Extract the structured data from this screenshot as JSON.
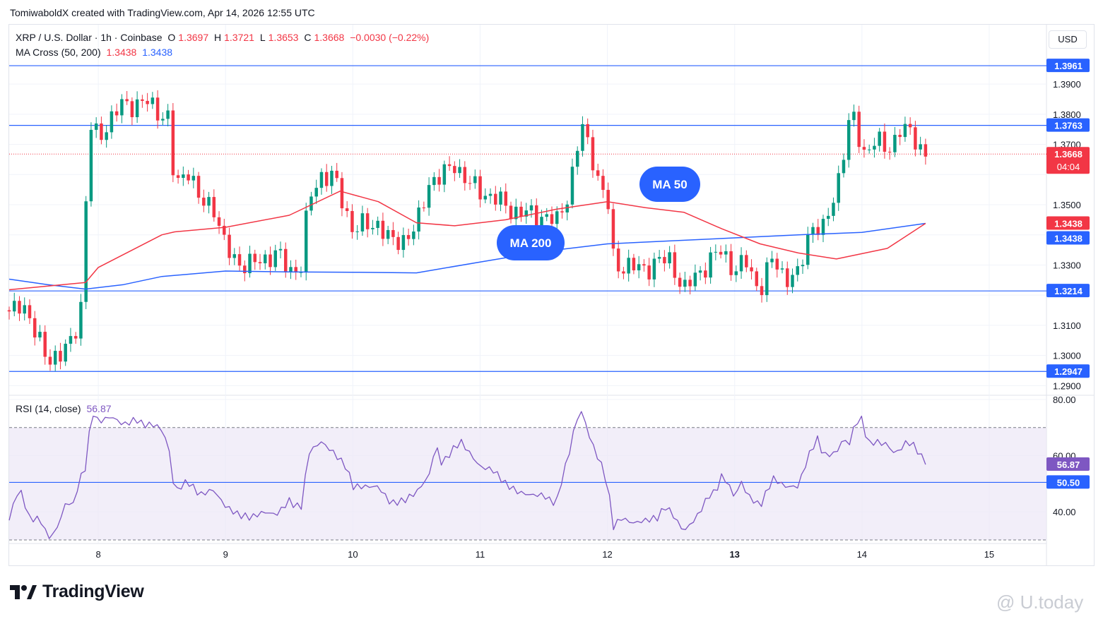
{
  "header": {
    "created_by": "TomiwaboldX created with TradingView.com, Apr 14, 2026 12:55 UTC"
  },
  "legend": {
    "symbol": "XRP / U.S. Dollar · 1h · Coinbase",
    "open_label": "O",
    "open": "1.3697",
    "high_label": "H",
    "high": "1.3721",
    "low_label": "L",
    "low": "1.3653",
    "close_label": "C",
    "close": "1.3668",
    "change": "−0.0030 (−0.22%)",
    "ma_name": "MA Cross (50, 200)",
    "ma50_value": "1.3438",
    "ma200_value": "1.3438",
    "rsi_name": "RSI (14, close)",
    "rsi_value": "56.87"
  },
  "currency_button": "USD",
  "annotations": {
    "ma50": "MA 50",
    "ma200": "MA 200"
  },
  "branding": {
    "logo_text": "TradingView",
    "watermark": "@ U.today"
  },
  "colors": {
    "up": "#089981",
    "down": "#f23645",
    "ma50": "#f23645",
    "ma200": "#2962ff",
    "hline": "#2962ff",
    "rsi": "#7e57c2",
    "rsi_band": "#ede7f6",
    "label_blue": "#2962ff",
    "label_red": "#f23645"
  },
  "chart_data": [
    {
      "type": "candlestick",
      "title": "XRP / U.S. Dollar · 1h · Coinbase",
      "x_ticks": [
        "8",
        "9",
        "10",
        "11",
        "12",
        "13",
        "14",
        "15"
      ],
      "x_tick_values": [
        8,
        9,
        10,
        11,
        12,
        13,
        14,
        15
      ],
      "x_range": [
        7.3,
        15.45
      ],
      "y_ticks": [
        1.29,
        1.3,
        1.31,
        1.33,
        1.35,
        1.37,
        1.38,
        1.39
      ],
      "y_tick_labels": [
        "1.2900",
        "1.3000",
        "1.3100",
        "1.3300",
        "1.3500",
        "1.3700",
        "1.3800",
        "1.3900"
      ],
      "y_range": [
        1.2875,
        1.4015
      ],
      "grid": true,
      "horizontal_levels": [
        {
          "value": 1.3961,
          "label": "1.3961"
        },
        {
          "value": 1.3763,
          "label": "1.3763"
        },
        {
          "value": 1.3214,
          "label": "1.3214"
        },
        {
          "value": 1.2947,
          "label": "1.2947"
        }
      ],
      "last_price": {
        "value": 1.3668,
        "label": "1.3668",
        "countdown": "04:04"
      },
      "ma_labels": [
        {
          "name": "MA 50",
          "value": 1.3438,
          "label": "1.3438"
        },
        {
          "name": "MA 200",
          "value": 1.3438,
          "label": "1.3438"
        }
      ],
      "close_path_keypoints": [
        [
          7.3,
          1.313
        ],
        [
          7.4,
          1.319
        ],
        [
          7.5,
          1.307
        ],
        [
          7.6,
          1.3
        ],
        [
          7.7,
          1.299
        ],
        [
          7.8,
          1.306
        ],
        [
          7.87,
          1.318
        ],
        [
          7.93,
          1.376
        ],
        [
          8.0,
          1.373
        ],
        [
          8.1,
          1.378
        ],
        [
          8.2,
          1.384
        ],
        [
          8.3,
          1.383
        ],
        [
          8.4,
          1.384
        ],
        [
          8.5,
          1.38
        ],
        [
          8.55,
          1.378
        ],
        [
          8.6,
          1.355
        ],
        [
          8.7,
          1.363
        ],
        [
          8.8,
          1.35
        ],
        [
          8.9,
          1.351
        ],
        [
          9.0,
          1.335
        ],
        [
          9.1,
          1.331
        ],
        [
          9.2,
          1.33
        ],
        [
          9.3,
          1.332
        ],
        [
          9.4,
          1.334
        ],
        [
          9.5,
          1.328
        ],
        [
          9.6,
          1.33
        ],
        [
          9.65,
          1.351
        ],
        [
          9.75,
          1.36
        ],
        [
          9.85,
          1.359
        ],
        [
          9.9,
          1.353
        ],
        [
          10.0,
          1.342
        ],
        [
          10.1,
          1.343
        ],
        [
          10.2,
          1.344
        ],
        [
          10.3,
          1.337
        ],
        [
          10.4,
          1.339
        ],
        [
          10.5,
          1.342
        ],
        [
          10.6,
          1.358
        ],
        [
          10.7,
          1.359
        ],
        [
          10.8,
          1.364
        ],
        [
          10.9,
          1.357
        ],
        [
          11.0,
          1.355
        ],
        [
          11.1,
          1.352
        ],
        [
          11.2,
          1.35
        ],
        [
          11.3,
          1.347
        ],
        [
          11.4,
          1.347
        ],
        [
          11.5,
          1.346
        ],
        [
          11.6,
          1.344
        ],
        [
          11.7,
          1.355
        ],
        [
          11.8,
          1.376
        ],
        [
          11.85,
          1.37
        ],
        [
          11.9,
          1.364
        ],
        [
          11.95,
          1.354
        ],
        [
          12.0,
          1.352
        ],
        [
          12.05,
          1.331
        ],
        [
          12.1,
          1.33
        ],
        [
          12.2,
          1.329
        ],
        [
          12.3,
          1.329
        ],
        [
          12.4,
          1.331
        ],
        [
          12.5,
          1.332
        ],
        [
          12.6,
          1.321
        ],
        [
          12.7,
          1.327
        ],
        [
          12.8,
          1.331
        ],
        [
          12.9,
          1.335
        ],
        [
          13.0,
          1.328
        ],
        [
          13.1,
          1.331
        ],
        [
          13.15,
          1.325
        ],
        [
          13.2,
          1.322
        ],
        [
          13.3,
          1.332
        ],
        [
          13.4,
          1.326
        ],
        [
          13.5,
          1.326
        ],
        [
          13.6,
          1.344
        ],
        [
          13.7,
          1.341
        ],
        [
          13.8,
          1.356
        ],
        [
          13.9,
          1.377
        ],
        [
          13.95,
          1.378
        ],
        [
          14.0,
          1.367
        ],
        [
          14.1,
          1.371
        ],
        [
          14.2,
          1.368
        ],
        [
          14.3,
          1.375
        ],
        [
          14.4,
          1.373
        ],
        [
          14.5,
          1.3668
        ]
      ],
      "ma50_keypoints": [
        [
          7.3,
          1.3218
        ],
        [
          7.9,
          1.3242
        ],
        [
          8.0,
          1.3292
        ],
        [
          8.5,
          1.34
        ],
        [
          8.6,
          1.341
        ],
        [
          9.0,
          1.3425
        ],
        [
          9.5,
          1.3465
        ],
        [
          9.9,
          1.3545
        ],
        [
          10.2,
          1.351
        ],
        [
          10.5,
          1.344
        ],
        [
          10.8,
          1.343
        ],
        [
          11.2,
          1.345
        ],
        [
          11.6,
          1.3485
        ],
        [
          12.0,
          1.351
        ],
        [
          12.3,
          1.349
        ],
        [
          12.6,
          1.3475
        ],
        [
          12.9,
          1.342
        ],
        [
          13.2,
          1.337
        ],
        [
          13.5,
          1.334
        ],
        [
          13.8,
          1.332
        ],
        [
          14.2,
          1.3355
        ],
        [
          14.5,
          1.3438
        ]
      ],
      "ma200_keypoints": [
        [
          7.3,
          1.3253
        ],
        [
          7.6,
          1.3235
        ],
        [
          7.9,
          1.322
        ],
        [
          8.2,
          1.3235
        ],
        [
          8.5,
          1.3262
        ],
        [
          9.0,
          1.328
        ],
        [
          9.5,
          1.3277
        ],
        [
          10.0,
          1.3276
        ],
        [
          10.5,
          1.3274
        ],
        [
          11.0,
          1.331
        ],
        [
          11.5,
          1.3345
        ],
        [
          12.0,
          1.337
        ],
        [
          12.5,
          1.338
        ],
        [
          13.0,
          1.339
        ],
        [
          13.5,
          1.34
        ],
        [
          14.0,
          1.3408
        ],
        [
          14.5,
          1.3438
        ]
      ]
    },
    {
      "type": "line",
      "title": "RSI (14, close)",
      "y_ticks": [
        40,
        60,
        80
      ],
      "y_tick_labels": [
        "40.00",
        "60.00",
        "80.00"
      ],
      "y_range": [
        29,
        81
      ],
      "band": [
        30,
        70
      ],
      "levels": [
        {
          "value": 50.5,
          "label": "50.50"
        }
      ],
      "last_value": {
        "value": 56.87,
        "label": "56.87"
      },
      "keypoints": [
        [
          7.3,
          37
        ],
        [
          7.35,
          46
        ],
        [
          7.4,
          47
        ],
        [
          7.45,
          38
        ],
        [
          7.55,
          37
        ],
        [
          7.6,
          31
        ],
        [
          7.65,
          32
        ],
        [
          7.7,
          37
        ],
        [
          7.75,
          44
        ],
        [
          7.8,
          42
        ],
        [
          7.85,
          51
        ],
        [
          7.9,
          56
        ],
        [
          7.95,
          76
        ],
        [
          8.0,
          72
        ],
        [
          8.1,
          74
        ],
        [
          8.2,
          71
        ],
        [
          8.3,
          73
        ],
        [
          8.35,
          71
        ],
        [
          8.45,
          71
        ],
        [
          8.5,
          69
        ],
        [
          8.55,
          64
        ],
        [
          8.6,
          47
        ],
        [
          8.7,
          51
        ],
        [
          8.8,
          46
        ],
        [
          8.9,
          48
        ],
        [
          9.0,
          42
        ],
        [
          9.1,
          39
        ],
        [
          9.2,
          38
        ],
        [
          9.3,
          40
        ],
        [
          9.4,
          39
        ],
        [
          9.5,
          44
        ],
        [
          9.55,
          42
        ],
        [
          9.6,
          42
        ],
        [
          9.65,
          61
        ],
        [
          9.75,
          65
        ],
        [
          9.85,
          61
        ],
        [
          9.95,
          56
        ],
        [
          10.0,
          49
        ],
        [
          10.1,
          49
        ],
        [
          10.2,
          49
        ],
        [
          10.3,
          43
        ],
        [
          10.4,
          44
        ],
        [
          10.5,
          47
        ],
        [
          10.6,
          53
        ],
        [
          10.65,
          64
        ],
        [
          10.7,
          57
        ],
        [
          10.8,
          63
        ],
        [
          10.85,
          65
        ],
        [
          10.95,
          59
        ],
        [
          11.0,
          56
        ],
        [
          11.1,
          55
        ],
        [
          11.2,
          50
        ],
        [
          11.3,
          47
        ],
        [
          11.4,
          46
        ],
        [
          11.5,
          46
        ],
        [
          11.55,
          44
        ],
        [
          11.6,
          43
        ],
        [
          11.65,
          53
        ],
        [
          11.7,
          61
        ],
        [
          11.75,
          72
        ],
        [
          11.8,
          76
        ],
        [
          11.85,
          68
        ],
        [
          11.9,
          62
        ],
        [
          11.95,
          57
        ],
        [
          12.0,
          50
        ],
        [
          12.05,
          34
        ],
        [
          12.1,
          38
        ],
        [
          12.2,
          36
        ],
        [
          12.3,
          37
        ],
        [
          12.4,
          38
        ],
        [
          12.45,
          42
        ],
        [
          12.5,
          40
        ],
        [
          12.6,
          33
        ],
        [
          12.7,
          38
        ],
        [
          12.8,
          46
        ],
        [
          12.85,
          47
        ],
        [
          12.9,
          53
        ],
        [
          12.95,
          50
        ],
        [
          13.0,
          45
        ],
        [
          13.05,
          51
        ],
        [
          13.1,
          46
        ],
        [
          13.2,
          42
        ],
        [
          13.3,
          52
        ],
        [
          13.4,
          49
        ],
        [
          13.5,
          49
        ],
        [
          13.55,
          56
        ],
        [
          13.6,
          62
        ],
        [
          13.65,
          66
        ],
        [
          13.7,
          60
        ],
        [
          13.8,
          61
        ],
        [
          13.85,
          66
        ],
        [
          13.9,
          64
        ],
        [
          13.95,
          72
        ],
        [
          14.0,
          73
        ],
        [
          14.05,
          64
        ],
        [
          14.1,
          65
        ],
        [
          14.2,
          64
        ],
        [
          14.25,
          61
        ],
        [
          14.3,
          62
        ],
        [
          14.35,
          65
        ],
        [
          14.4,
          64
        ],
        [
          14.45,
          61
        ],
        [
          14.5,
          56.87
        ]
      ]
    }
  ]
}
